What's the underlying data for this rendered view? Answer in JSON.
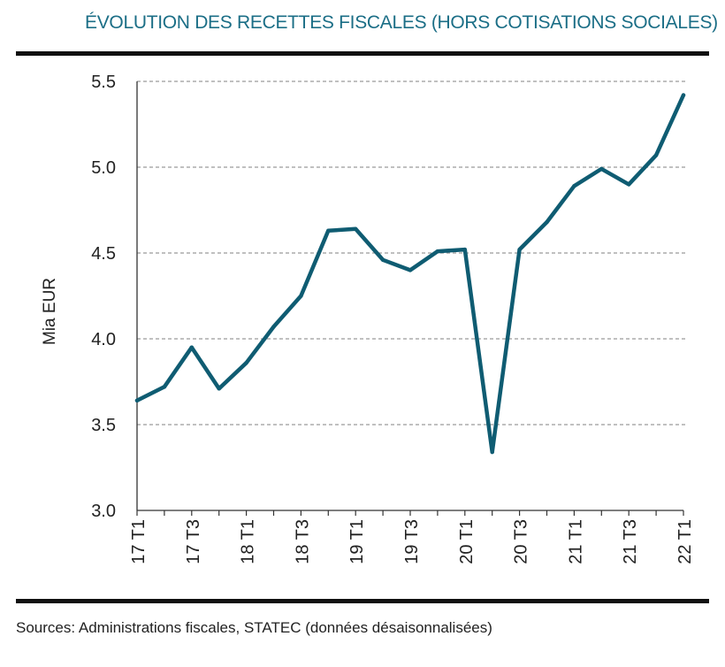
{
  "header": {
    "title": "ÉVOLUTION DES RECETTES FISCALES (HORS COTISATIONS SOCIALES)"
  },
  "footer": {
    "source": "Sources: Administrations fiscales, STATEC (données désaisonnalisées)"
  },
  "colors": {
    "accent": "#1b6e86",
    "line": "#0f5c72",
    "grid": "#9a9a9a",
    "axis": "#333333"
  },
  "chart_data": {
    "type": "line",
    "title": "ÉVOLUTION DES RECETTES FISCALES (HORS COTISATIONS SOCIALES)",
    "xlabel": "",
    "ylabel": "Mia EUR",
    "ylim": [
      3.0,
      5.5
    ],
    "yticks": [
      3.0,
      3.5,
      4.0,
      4.5,
      5.0,
      5.5
    ],
    "ytick_labels": [
      "3.0",
      "3.5",
      "4.0",
      "4.5",
      "5.0",
      "5.5"
    ],
    "grid": "horizontal dashed",
    "x": [
      "17 T1",
      "17 T2",
      "17 T3",
      "17 T4",
      "18 T1",
      "18 T2",
      "18 T3",
      "18 T4",
      "19 T1",
      "19 T2",
      "19 T3",
      "19 T4",
      "20 T1",
      "20 T2",
      "20 T3",
      "20 T4",
      "21 T1",
      "21 T2",
      "21 T3",
      "21 T4",
      "22 T1"
    ],
    "xtick_labels": [
      "17 T1",
      "17 T3",
      "18 T1",
      "18 T3",
      "19 T1",
      "19 T3",
      "20 T1",
      "20 T3",
      "21 T1",
      "21 T3",
      "22 T1"
    ],
    "series": [
      {
        "name": "Recettes fiscales",
        "values": [
          3.64,
          3.72,
          3.95,
          3.71,
          3.86,
          4.07,
          4.25,
          4.63,
          4.64,
          4.46,
          4.4,
          4.51,
          4.52,
          3.34,
          4.52,
          4.68,
          4.89,
          4.99,
          4.9,
          5.07,
          5.42
        ]
      }
    ]
  }
}
